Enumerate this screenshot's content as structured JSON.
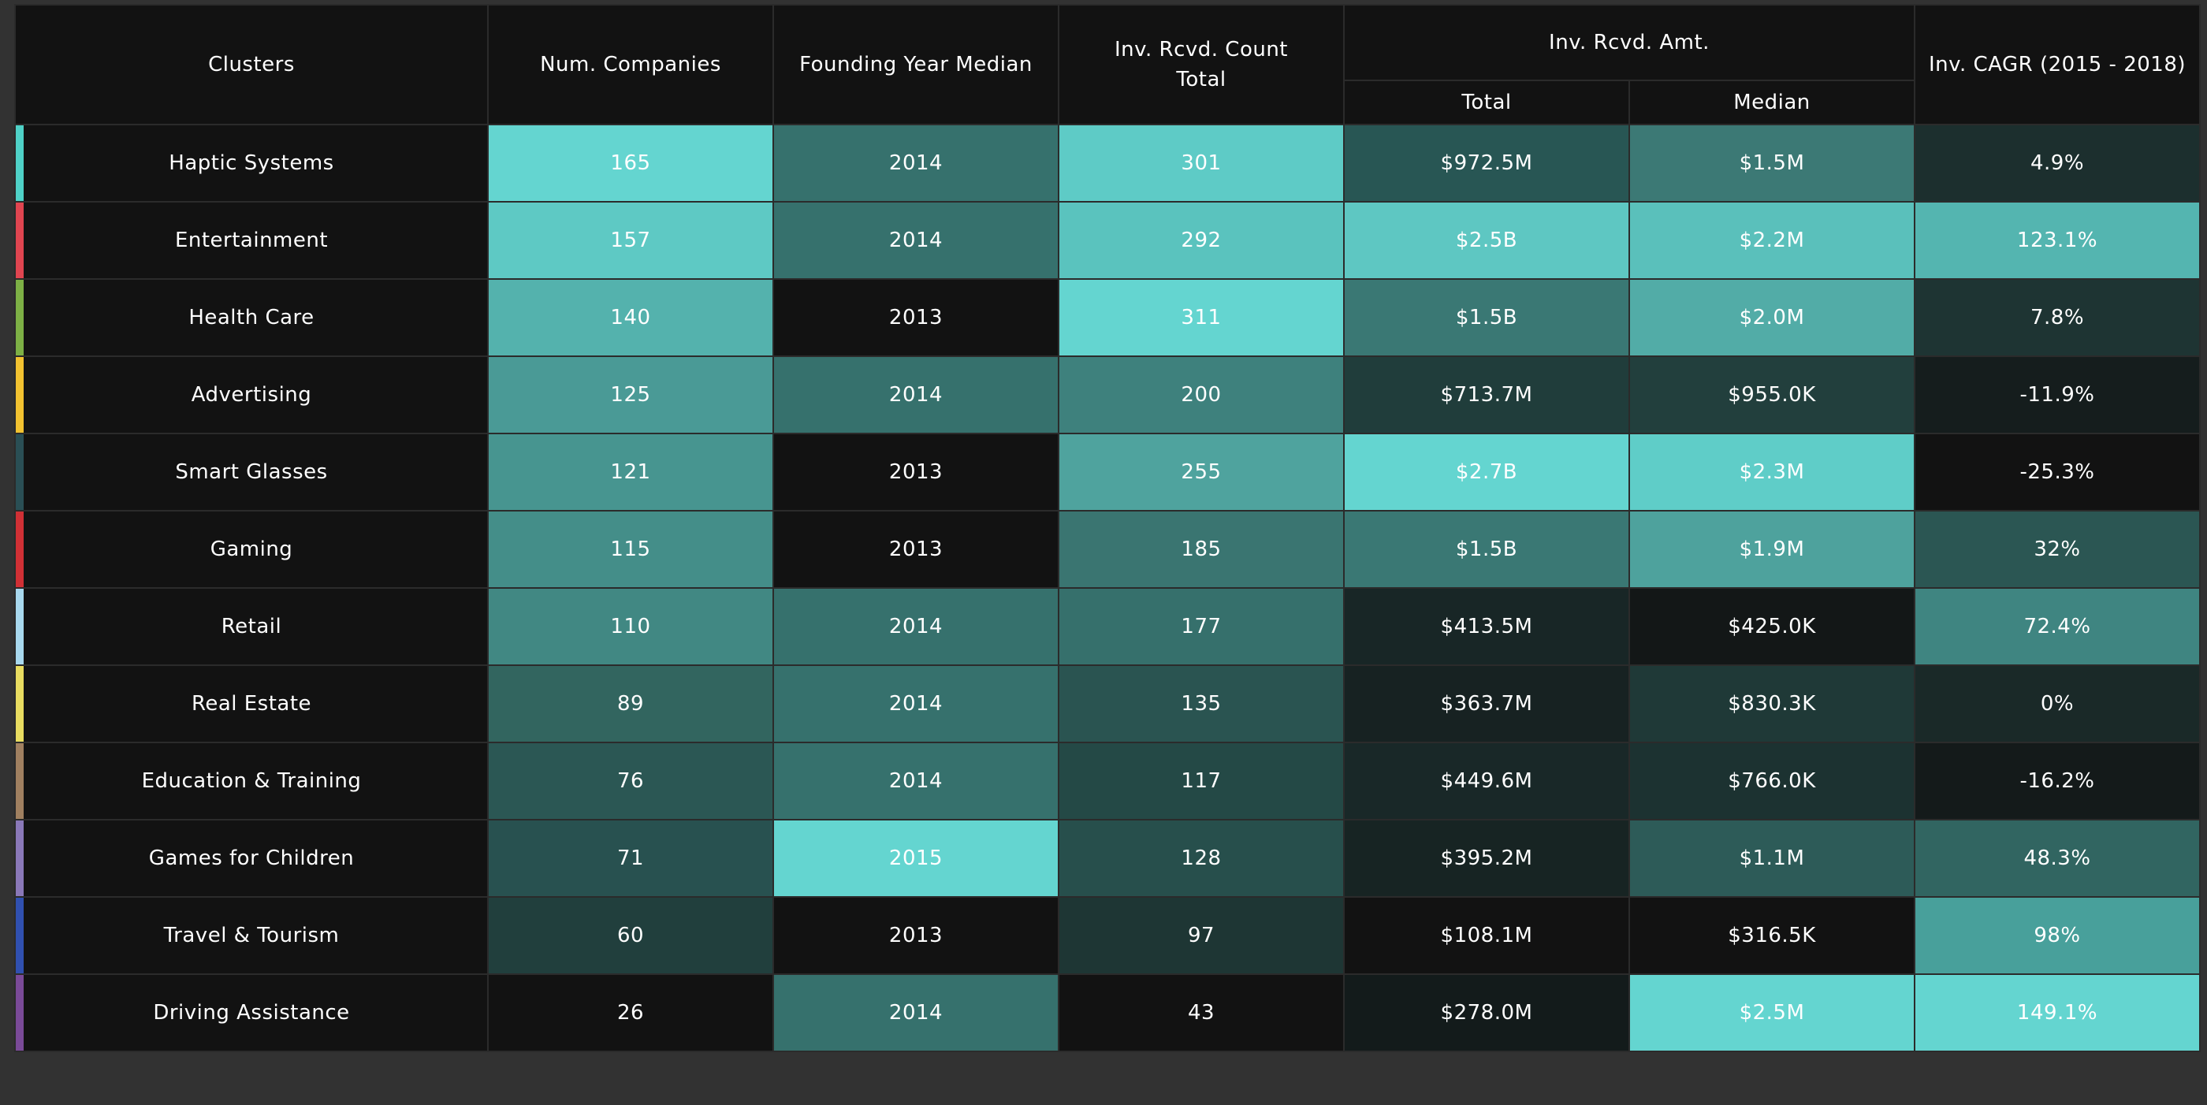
{
  "header": {
    "clusters": "Clusters",
    "num_companies": "Num. Companies",
    "founding_year_median": "Founding Year Median",
    "inv_count_total_line1": "Inv. Rcvd. Count",
    "inv_count_total_line2": "Total",
    "inv_amt": "Inv. Rcvd. Amt.",
    "inv_amt_total": "Total",
    "inv_amt_median": "Median",
    "inv_cagr": "Inv. CAGR (2015 - 2018)"
  },
  "rows": [
    {
      "cluster": "Haptic Systems",
      "swatch": "#4fd1c7",
      "num_companies": "165",
      "founding": "2014",
      "count": "301",
      "amt_total": "$972.5M",
      "amt_median": "$1.5M",
      "cagr": "4.9%",
      "bg": {
        "num": "#64d5d0",
        "founding": "#36716d",
        "count": "#5ecbc6",
        "amt_total": "#285654",
        "amt_median": "#3c7975",
        "cagr": "#1c2f2e"
      }
    },
    {
      "cluster": "Entertainment",
      "swatch": "#e04550",
      "num_companies": "157",
      "founding": "2014",
      "count": "292",
      "amt_total": "$2.5B",
      "amt_median": "$2.2M",
      "cagr": "123.1%",
      "bg": {
        "num": "#5ec9c4",
        "founding": "#36716d",
        "count": "#5ac3be",
        "amt_total": "#5ec7c2",
        "amt_median": "#5ac0bb",
        "cagr": "#54b5b0"
      }
    },
    {
      "cluster": "Health Care",
      "swatch": "#7db045",
      "num_companies": "140",
      "founding": "2013",
      "count": "311",
      "amt_total": "$1.5B",
      "amt_median": "$2.0M",
      "cagr": "7.8%",
      "bg": {
        "num": "#54b2ad",
        "founding": "#121212",
        "count": "#64d5d0",
        "amt_total": "#3a7874",
        "amt_median": "#52aca7",
        "cagr": "#1e3433"
      }
    },
    {
      "cluster": "Advertising",
      "swatch": "#f2c230",
      "num_companies": "125",
      "founding": "2014",
      "count": "200",
      "amt_total": "$713.7M",
      "amt_median": "$955.0K",
      "cagr": "-11.9%",
      "bg": {
        "num": "#4a9a96",
        "founding": "#36716d",
        "count": "#3e817d",
        "amt_total": "#203d3b",
        "amt_median": "#223f3d",
        "cagr": "#151d1d"
      }
    },
    {
      "cluster": "Smart Glasses",
      "swatch": "#2a4f55",
      "num_companies": "121",
      "founding": "2013",
      "count": "255",
      "amt_total": "$2.7B",
      "amt_median": "$2.3M",
      "cagr": "-25.3%",
      "bg": {
        "num": "#479590",
        "founding": "#121212",
        "count": "#4fa39e",
        "amt_total": "#64d5d0",
        "amt_median": "#5fcdc8",
        "cagr": "#121212"
      }
    },
    {
      "cluster": "Gaming",
      "swatch": "#d03035",
      "num_companies": "115",
      "founding": "2013",
      "count": "185",
      "amt_total": "$1.5B",
      "amt_median": "$1.9M",
      "cagr": "32%",
      "bg": {
        "num": "#448e89",
        "founding": "#121212",
        "count": "#3a7571",
        "amt_total": "#3a7874",
        "amt_median": "#4ea29d",
        "cagr": "#2b5653"
      }
    },
    {
      "cluster": "Retail",
      "swatch": "#a8d8ee",
      "num_companies": "110",
      "founding": "2014",
      "count": "177",
      "amt_total": "$413.5M",
      "amt_median": "$425.0K",
      "cagr": "72.4%",
      "bg": {
        "num": "#418883",
        "founding": "#36716d",
        "count": "#36706c",
        "amt_total": "#182626",
        "amt_median": "#131717",
        "cagr": "#3f8581"
      }
    },
    {
      "cluster": "Real Estate",
      "swatch": "#e8dc60",
      "num_companies": "89",
      "founding": "2014",
      "count": "135",
      "amt_total": "$363.7M",
      "amt_median": "$830.3K",
      "cagr": "0%",
      "bg": {
        "num": "#32655f",
        "founding": "#36716d",
        "count": "#2a5451",
        "amt_total": "#172222",
        "amt_median": "#1f3937",
        "cagr": "#1a2928"
      }
    },
    {
      "cluster": "Education & Training",
      "swatch": "#a08060",
      "num_companies": "76",
      "founding": "2014",
      "count": "117",
      "amt_total": "$449.6M",
      "amt_median": "$766.0K",
      "cagr": "-16.2%",
      "bg": {
        "num": "#2b5754",
        "founding": "#36716d",
        "count": "#244946",
        "amt_total": "#192828",
        "amt_median": "#1c3231",
        "cagr": "#141a1a"
      }
    },
    {
      "cluster": "Games for Children",
      "swatch": "#8a78b8",
      "num_companies": "71",
      "founding": "2015",
      "count": "128",
      "amt_total": "$395.2M",
      "amt_median": "$1.1M",
      "cagr": "48.3%",
      "bg": {
        "num": "#285150",
        "founding": "#64d5d0",
        "count": "#274f4c",
        "amt_total": "#172423",
        "amt_median": "#2d5b58",
        "cagr": "#316561"
      }
    },
    {
      "cluster": "Travel & Tourism",
      "swatch": "#3050b0",
      "num_companies": "60",
      "founding": "2013",
      "count": "97",
      "amt_total": "$108.1M",
      "amt_median": "$316.5K",
      "cagr": "98%",
      "bg": {
        "num": "#213f3d",
        "founding": "#121212",
        "count": "#1e3634",
        "amt_total": "#121212",
        "amt_median": "#121212",
        "cagr": "#48a09b"
      }
    },
    {
      "cluster": "Driving Assistance",
      "swatch": "#7a4a98",
      "num_companies": "26",
      "founding": "2014",
      "count": "43",
      "amt_total": "$278.0M",
      "amt_median": "$2.5M",
      "cagr": "149.1%",
      "bg": {
        "num": "#121212",
        "founding": "#36716d",
        "count": "#121212",
        "amt_total": "#131b1b",
        "amt_median": "#64d5d0",
        "cagr": "#64d5d0"
      }
    }
  ]
}
